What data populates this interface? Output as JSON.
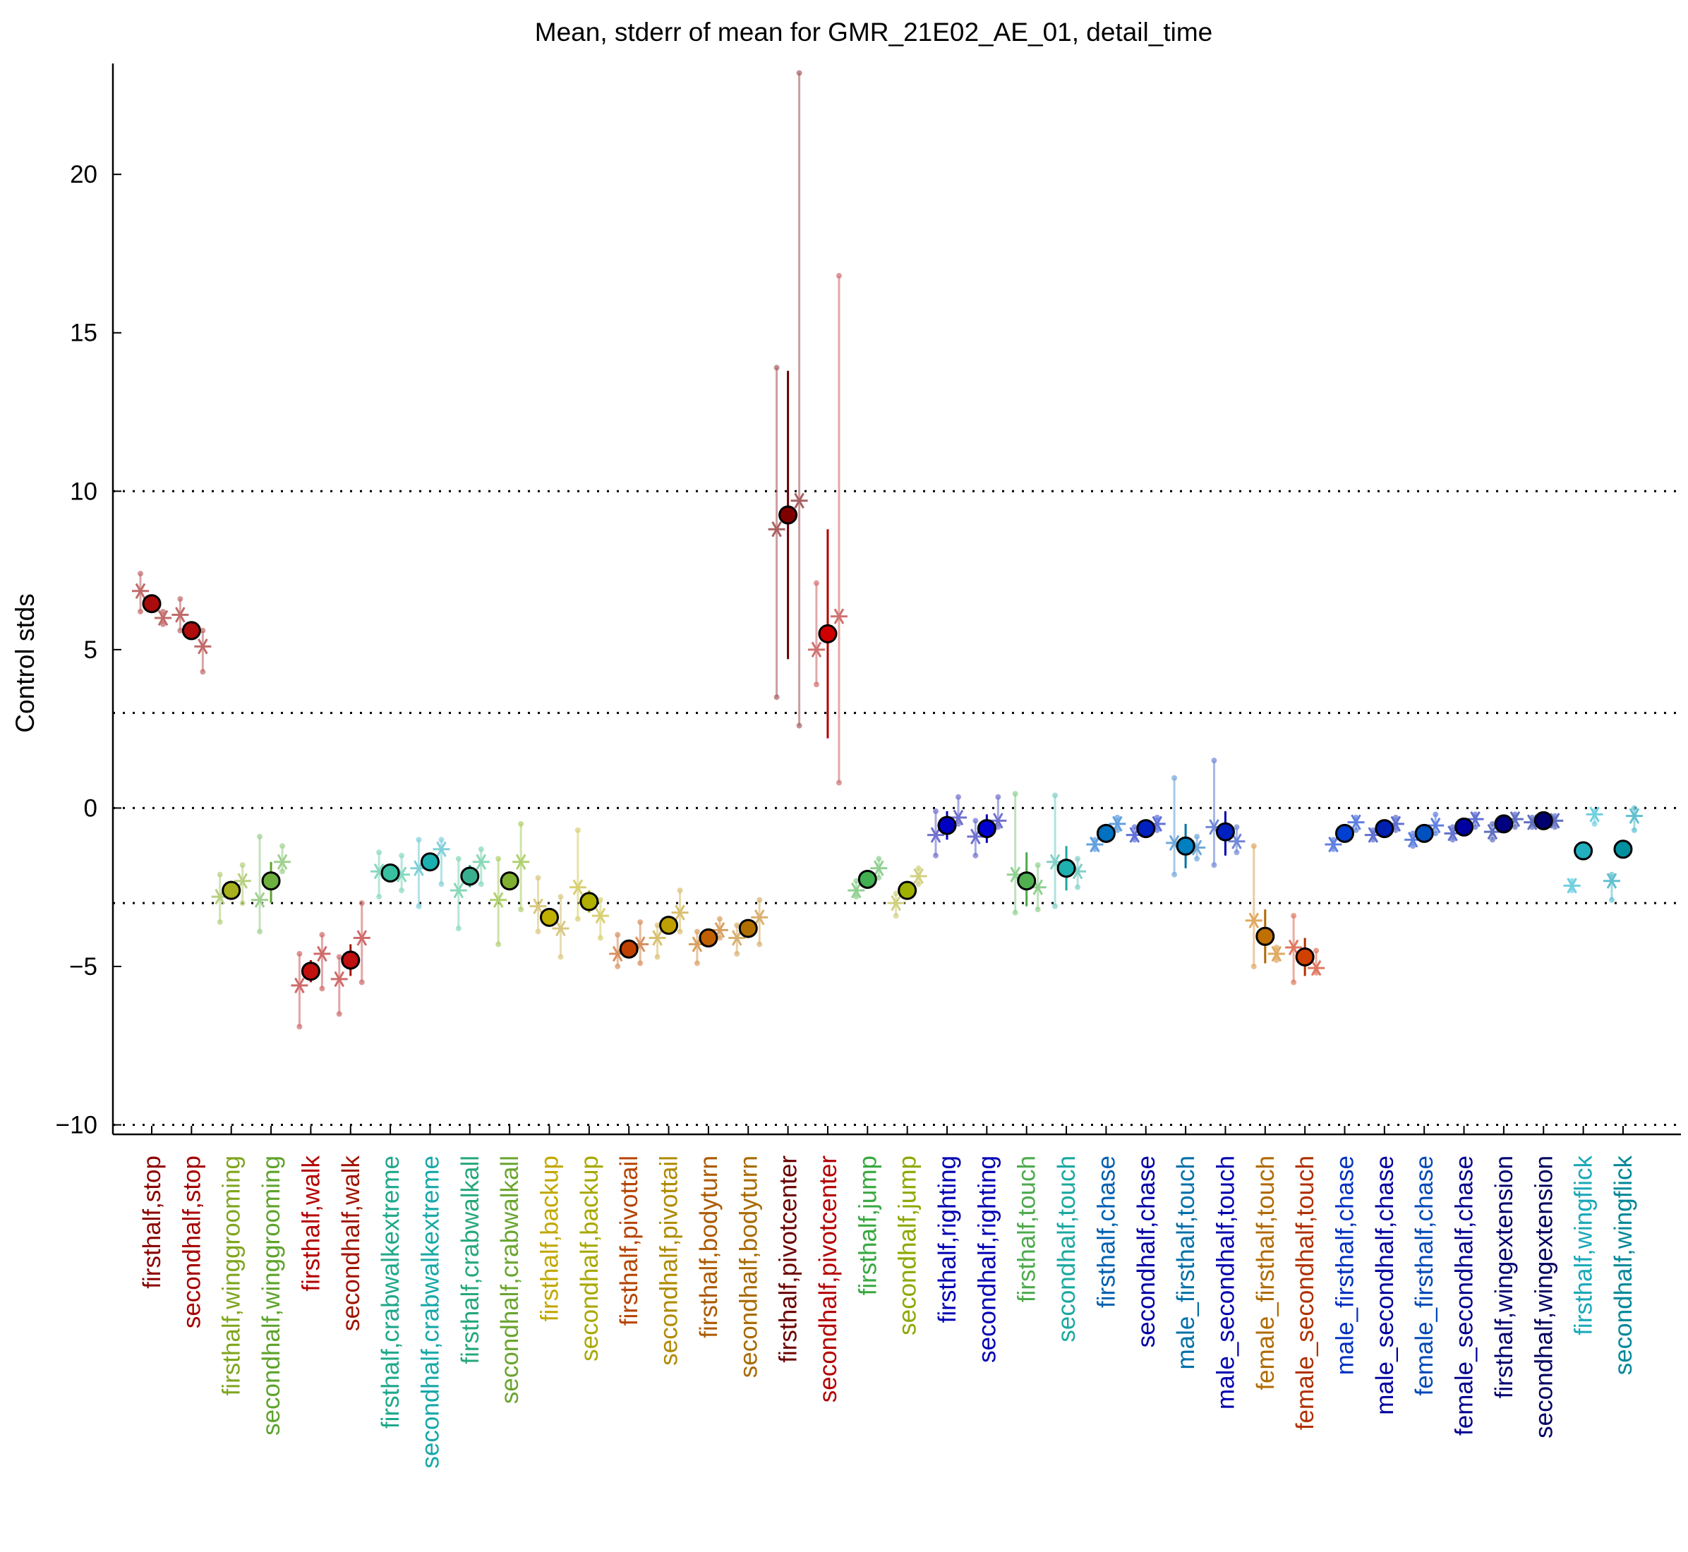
{
  "chart_data": {
    "type": "scatter",
    "title": "Mean, stderr of mean for GMR_21E02_AE_01, detail_time",
    "ylabel": "Control stds",
    "xlabel": "",
    "ylim": [
      -10.3,
      23.5
    ],
    "yticks": [
      -10,
      -5,
      0,
      5,
      10,
      15,
      20
    ],
    "ytick_labels": [
      "−10",
      "−5",
      "0",
      "5",
      "10",
      "15",
      "20"
    ],
    "reference_lines": [
      10,
      3,
      0,
      -3,
      -10
    ],
    "grid": false,
    "legend": "none",
    "categories": [
      "firsthalf,stop",
      "secondhalf,stop",
      "firsthalf,winggrooming",
      "secondhalf,winggrooming",
      "firsthalf,walk",
      "secondhalf,walk",
      "firsthalf,crabwalkextreme",
      "secondhalf,crabwalkextreme",
      "firsthalf,crabwalkall",
      "secondhalf,crabwalkall",
      "firsthalf,backup",
      "secondhalf,backup",
      "firsthalf,pivottail",
      "secondhalf,pivottail",
      "firsthalf,bodyturn",
      "secondhalf,bodyturn",
      "firsthalf,pivotcenter",
      "secondhalf,pivotcenter",
      "firsthalf,jump",
      "secondhalf,jump",
      "firsthalf,righting",
      "secondhalf,righting",
      "firsthalf,touch",
      "secondhalf,touch",
      "firsthalf,chase",
      "secondhalf,chase",
      "male_firsthalf,touch",
      "male_secondhalf,touch",
      "female_firsthalf,touch",
      "female_secondhalf,touch",
      "male_firsthalf,chase",
      "male_secondhalf,chase",
      "female_firsthalf,chase",
      "female_secondhalf,chase",
      "firsthalf,wingextension",
      "secondhalf,wingextension",
      "firsthalf,wingflick",
      "secondhalf,wingflick"
    ],
    "mean": [
      6.45,
      5.6,
      -2.6,
      -2.3,
      -5.15,
      -4.8,
      -2.05,
      -1.7,
      -2.15,
      -2.3,
      -3.45,
      -2.95,
      -4.45,
      -3.7,
      -4.1,
      -3.8,
      9.25,
      5.5,
      -2.25,
      -2.6,
      -0.55,
      -0.65,
      -2.3,
      -1.9,
      -0.8,
      -0.65,
      -1.2,
      -0.75,
      -4.05,
      -4.7,
      -0.8,
      -0.65,
      -0.8,
      -0.6,
      -0.5,
      -0.4,
      -1.35,
      -1.3
    ],
    "sem_low": [
      6.3,
      5.45,
      -2.9,
      -3.0,
      -5.5,
      -5.3,
      -2.3,
      -1.9,
      -2.5,
      -2.6,
      -3.7,
      -3.3,
      -4.75,
      -3.9,
      -4.35,
      -4.0,
      4.7,
      2.2,
      -2.5,
      -2.85,
      -1.0,
      -1.1,
      -3.1,
      -2.6,
      -1.1,
      -0.9,
      -1.9,
      -1.5,
      -4.9,
      -5.3,
      -1.0,
      -0.8,
      -1.0,
      -0.8,
      -0.7,
      -0.55,
      -1.55,
      -1.5
    ],
    "sem_high": [
      6.6,
      5.75,
      -2.3,
      -1.7,
      -4.8,
      -4.3,
      -1.8,
      -1.5,
      -1.8,
      -2.0,
      -3.2,
      -2.6,
      -4.2,
      -3.5,
      -3.85,
      -3.6,
      13.8,
      8.8,
      -2.0,
      -2.35,
      -0.1,
      -0.2,
      -1.4,
      -1.2,
      -0.5,
      -0.4,
      -0.5,
      -0.1,
      -3.2,
      -4.1,
      -0.6,
      -0.5,
      -0.6,
      -0.4,
      -0.3,
      -0.25,
      -1.15,
      -1.1
    ],
    "replicate_a": [
      6.85,
      6.1,
      -2.8,
      -2.9,
      -5.6,
      -5.4,
      -2.0,
      -1.9,
      -2.6,
      -2.9,
      -3.1,
      -2.5,
      -4.6,
      -4.1,
      -4.3,
      -4.1,
      8.8,
      5.0,
      -2.6,
      -3.0,
      -0.85,
      -0.9,
      -2.1,
      -1.7,
      -1.15,
      -0.85,
      -1.1,
      -0.6,
      -3.55,
      -4.4,
      -1.15,
      -0.85,
      -1.0,
      -0.8,
      -0.75,
      -0.45,
      -2.45,
      -2.3
    ],
    "replicate_b": [
      6.0,
      5.1,
      -2.3,
      -1.7,
      -4.6,
      -4.1,
      -2.1,
      -1.3,
      -1.7,
      -1.7,
      -3.8,
      -3.4,
      -4.3,
      -3.3,
      -3.85,
      -3.45,
      9.7,
      6.05,
      -1.9,
      -2.15,
      -0.3,
      -0.4,
      -2.5,
      -2.0,
      -0.5,
      -0.5,
      -1.25,
      -1.05,
      -4.6,
      -5.05,
      -0.45,
      -0.5,
      -0.55,
      -0.35,
      -0.35,
      -0.4,
      -0.2,
      -0.25
    ],
    "range_a": [
      [
        6.2,
        7.4
      ],
      [
        5.6,
        6.6
      ],
      [
        -3.6,
        -2.1
      ],
      [
        -3.9,
        -0.9
      ],
      [
        -6.9,
        -4.6
      ],
      [
        -6.5,
        -4.7
      ],
      [
        -2.8,
        -1.4
      ],
      [
        -3.1,
        -1.0
      ],
      [
        -3.8,
        -1.6
      ],
      [
        -4.3,
        -1.6
      ],
      [
        -3.9,
        -2.2
      ],
      [
        -3.5,
        -0.7
      ],
      [
        -5.0,
        -4.0
      ],
      [
        -4.7,
        -3.7
      ],
      [
        -4.9,
        -3.9
      ],
      [
        -4.6,
        -3.7
      ],
      [
        3.5,
        13.9
      ],
      [
        3.9,
        7.1
      ],
      [
        -2.8,
        -2.3
      ],
      [
        -3.4,
        -2.7
      ],
      [
        -1.5,
        -0.1
      ],
      [
        -1.5,
        -0.4
      ],
      [
        -3.3,
        0.45
      ],
      [
        -3.1,
        0.4
      ],
      [
        -1.3,
        -1.0
      ],
      [
        -1.0,
        -0.6
      ],
      [
        -2.1,
        0.95
      ],
      [
        -1.8,
        1.5
      ],
      [
        -5.0,
        -1.2
      ],
      [
        -5.5,
        -3.4
      ],
      [
        -1.3,
        -1.0
      ],
      [
        -1.0,
        -0.7
      ],
      [
        -1.2,
        -0.8
      ],
      [
        -1.0,
        -0.6
      ],
      [
        -1.0,
        -0.5
      ],
      [
        -0.6,
        -0.3
      ],
      [
        -2.6,
        -2.3
      ],
      [
        -2.9,
        -2.1
      ]
    ],
    "range_b": [
      [
        5.8,
        6.2
      ],
      [
        4.3,
        5.6
      ],
      [
        -3.0,
        -1.8
      ],
      [
        -2.0,
        -1.2
      ],
      [
        -5.7,
        -4.0
      ],
      [
        -5.5,
        -3.0
      ],
      [
        -2.6,
        -1.5
      ],
      [
        -2.4,
        -1.0
      ],
      [
        -2.4,
        -1.3
      ],
      [
        -3.2,
        -0.5
      ],
      [
        -4.7,
        -2.8
      ],
      [
        -4.1,
        -2.9
      ],
      [
        -4.9,
        -3.6
      ],
      [
        -3.9,
        -2.6
      ],
      [
        -4.1,
        -3.5
      ],
      [
        -4.3,
        -2.9
      ],
      [
        2.6,
        23.2
      ],
      [
        0.8,
        16.8
      ],
      [
        -2.2,
        -1.6
      ],
      [
        -2.4,
        -1.9
      ],
      [
        -0.5,
        0.35
      ],
      [
        -0.6,
        0.35
      ],
      [
        -3.2,
        -1.8
      ],
      [
        -2.5,
        -1.6
      ],
      [
        -0.7,
        -0.3
      ],
      [
        -0.7,
        -0.3
      ],
      [
        -1.6,
        -0.9
      ],
      [
        -1.4,
        -0.6
      ],
      [
        -4.8,
        -4.4
      ],
      [
        -5.2,
        -4.5
      ],
      [
        -0.7,
        -0.3
      ],
      [
        -0.7,
        -0.3
      ],
      [
        -0.8,
        -0.2
      ],
      [
        -0.6,
        -0.2
      ],
      [
        -0.6,
        -0.2
      ],
      [
        -0.6,
        -0.25
      ],
      [
        -0.5,
        -0.1
      ],
      [
        -0.7,
        0.0
      ]
    ],
    "colors": [
      "#8b0000",
      "#a50000",
      "#7fa51f",
      "#5da32b",
      "#b40000",
      "#a01400",
      "#1ea88a",
      "#17a8a8",
      "#25a87a",
      "#6aa52f",
      "#c2a800",
      "#a8a800",
      "#b64400",
      "#b08a00",
      "#ac5a00",
      "#a86a00",
      "#6b0000",
      "#b40000",
      "#38a840",
      "#8ca800",
      "#0000b4",
      "#0000b4",
      "#4daa4d",
      "#1aa8a0",
      "#0060b0",
      "#0000a8",
      "#0070a8",
      "#0000b0",
      "#b06a00",
      "#b03000",
      "#0030c0",
      "#0000a0",
      "#0048b8",
      "#000090",
      "#000070",
      "#000060",
      "#1aa8b8",
      "#008898"
    ],
    "marker_colors": [
      "#a80c0c",
      "#b00c0c",
      "#a8b01e",
      "#6eb040",
      "#c01010",
      "#c01010",
      "#38c0a0",
      "#1ab0b0",
      "#38b090",
      "#80b030",
      "#c0b000",
      "#b0b000",
      "#c04000",
      "#c0a000",
      "#c06000",
      "#b07000",
      "#800000",
      "#d00000",
      "#40b050",
      "#a0b000",
      "#0000c0",
      "#0000d0",
      "#50b050",
      "#20b0b0",
      "#0070c0",
      "#0020c0",
      "#0080c0",
      "#0020c0",
      "#c07000",
      "#d04000",
      "#0040d0",
      "#0020b0",
      "#0050c0",
      "#0000a0",
      "#000080",
      "#000070",
      "#20b0c0",
      "#0090a0"
    ],
    "replicate_colors": [
      "#c06a6a",
      "#c06a6a",
      "#b8d080",
      "#a0d090",
      "#d06a6a",
      "#d06a6a",
      "#88d8c0",
      "#80d0d8",
      "#88d8b8",
      "#b0d070",
      "#d8c880",
      "#d8d070",
      "#d89060",
      "#d8c070",
      "#d8a060",
      "#d8b070",
      "#a86060",
      "#d07070",
      "#90d090",
      "#d0d080",
      "#7070d0",
      "#7070d0",
      "#90d090",
      "#80d0c8",
      "#60a0e0",
      "#6070d8",
      "#70a8d8",
      "#7088d8",
      "#e0a860",
      "#e07860",
      "#6080e0",
      "#6070d0",
      "#6080e0",
      "#6070d0",
      "#6070c0",
      "#6070c0",
      "#70d0e0",
      "#60c0d0"
    ]
  }
}
